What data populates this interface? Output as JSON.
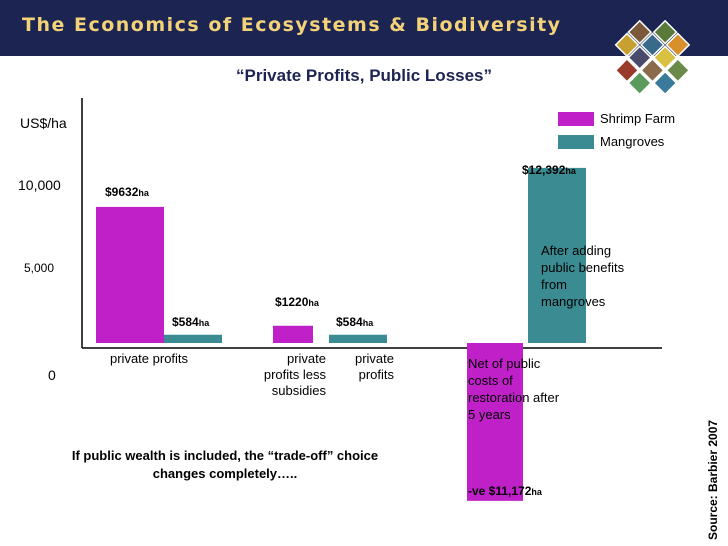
{
  "header": {
    "title": "The Economics of Ecosystems & Biodiversity"
  },
  "source": "Source: Barbier 2007",
  "colors": {
    "shrimp": "#c020c8",
    "mangrove": "#3a8c92",
    "header_bg": "#1c2452",
    "header_text": "#f4d27a"
  },
  "chart_data": {
    "type": "bar",
    "title": "“Private Profits, Public Losses”",
    "ylabel": "US$/ha",
    "yticks": [
      {
        "value": 10000,
        "label": "10,000"
      },
      {
        "value": 5000,
        "label": "5,000"
      },
      {
        "value": 0,
        "label": "0"
      }
    ],
    "ylim": [
      -11172,
      12392
    ],
    "legend": {
      "position": "top-right",
      "items": [
        {
          "name": "Shrimp Farm",
          "color": "#c020c8"
        },
        {
          "name": "Mangroves",
          "color": "#3a8c92"
        }
      ]
    },
    "groups": [
      {
        "category": "private profits",
        "shrimp": 9632,
        "mangrove": 584,
        "shrimp_label": "$9632",
        "mangrove_label": "$584"
      },
      {
        "category": "private profits less subsidies",
        "mangrove_category": "private profits",
        "shrimp": 1220,
        "mangrove": 584,
        "shrimp_label": "$1220",
        "mangrove_label": "$584"
      },
      {
        "category": "Net of public costs of restoration after 5 years",
        "mangrove_category": "After adding public benefits from mangroves",
        "shrimp": -11172,
        "mangrove": 12392,
        "shrimp_label": "-ve  $11,172",
        "mangrove_label": "$12,392"
      }
    ],
    "unit_suffix": "ha",
    "annotation": "If public wealth is included, the “trade-off” choice changes completely….."
  }
}
